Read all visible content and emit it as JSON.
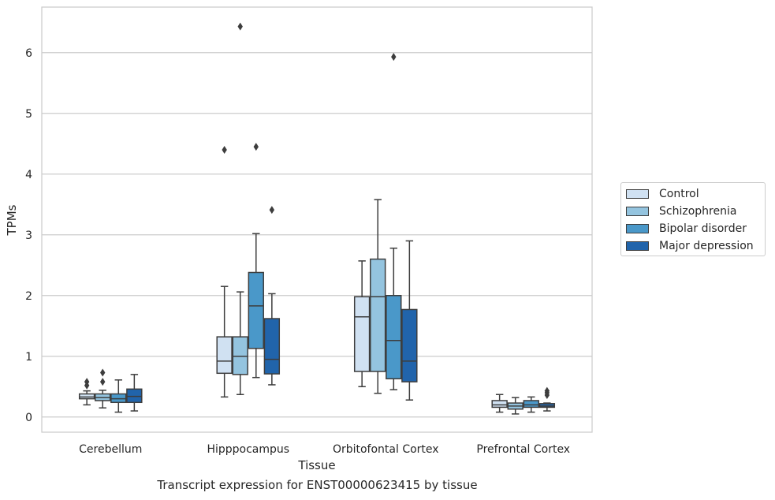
{
  "caption": "Transcript expression for ENST00000623415 by tissue",
  "chart_data": {
    "type": "box",
    "xlabel": "Tissue",
    "ylabel": "TPMs",
    "categories": [
      "Cerebellum",
      "Hipppocampus",
      "Orbitofontal Cortex",
      "Prefrontal Cortex"
    ],
    "ylim": [
      -0.25,
      6.75
    ],
    "yticks": [
      0,
      1,
      2,
      3,
      4,
      5,
      6
    ],
    "grid": true,
    "legend_position": "right",
    "series": [
      {
        "name": "Control",
        "color": "#d0e1f2",
        "boxes": [
          {
            "whislo": 0.2,
            "q1": 0.3,
            "med": 0.33,
            "q3": 0.38,
            "whishi": 0.43,
            "fliers": [
              0.52,
              0.58
            ]
          },
          {
            "whislo": 0.33,
            "q1": 0.72,
            "med": 0.92,
            "q3": 1.32,
            "whishi": 2.15,
            "fliers": [
              4.4
            ]
          },
          {
            "whislo": 0.5,
            "q1": 0.75,
            "med": 1.65,
            "q3": 1.98,
            "whishi": 2.57,
            "fliers": []
          },
          {
            "whislo": 0.08,
            "q1": 0.16,
            "med": 0.2,
            "q3": 0.27,
            "whishi": 0.37,
            "fliers": []
          }
        ]
      },
      {
        "name": "Schizophrenia",
        "color": "#94c4df",
        "boxes": [
          {
            "whislo": 0.15,
            "q1": 0.27,
            "med": 0.32,
            "q3": 0.38,
            "whishi": 0.44,
            "fliers": [
              0.58,
              0.73
            ]
          },
          {
            "whislo": 0.37,
            "q1": 0.7,
            "med": 1.0,
            "q3": 1.32,
            "whishi": 2.06,
            "fliers": [
              6.43
            ]
          },
          {
            "whislo": 0.39,
            "q1": 0.75,
            "med": 1.98,
            "q3": 2.6,
            "whishi": 3.58,
            "fliers": []
          },
          {
            "whislo": 0.05,
            "q1": 0.13,
            "med": 0.18,
            "q3": 0.23,
            "whishi": 0.32,
            "fliers": []
          }
        ]
      },
      {
        "name": "Bipolar disorder",
        "color": "#4a98c9",
        "boxes": [
          {
            "whislo": 0.08,
            "q1": 0.24,
            "med": 0.3,
            "q3": 0.38,
            "whishi": 0.61,
            "fliers": []
          },
          {
            "whislo": 0.65,
            "q1": 1.13,
            "med": 1.83,
            "q3": 2.38,
            "whishi": 3.02,
            "fliers": [
              4.45
            ]
          },
          {
            "whislo": 0.45,
            "q1": 0.63,
            "med": 1.26,
            "q3": 2.0,
            "whishi": 2.78,
            "fliers": [
              5.93
            ]
          },
          {
            "whislo": 0.08,
            "q1": 0.16,
            "med": 0.2,
            "q3": 0.27,
            "whishi": 0.33,
            "fliers": []
          }
        ]
      },
      {
        "name": "Major depression",
        "color": "#2164ab",
        "boxes": [
          {
            "whislo": 0.1,
            "q1": 0.24,
            "med": 0.34,
            "q3": 0.46,
            "whishi": 0.7,
            "fliers": []
          },
          {
            "whislo": 0.53,
            "q1": 0.71,
            "med": 0.95,
            "q3": 1.62,
            "whishi": 2.03,
            "fliers": [
              3.41
            ]
          },
          {
            "whislo": 0.28,
            "q1": 0.58,
            "med": 0.92,
            "q3": 1.77,
            "whishi": 2.9,
            "fliers": []
          },
          {
            "whislo": 0.1,
            "q1": 0.16,
            "med": 0.18,
            "q3": 0.22,
            "whishi": 0.23,
            "fliers": [
              0.36,
              0.4,
              0.43
            ]
          }
        ]
      }
    ]
  }
}
